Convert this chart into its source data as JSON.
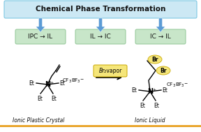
{
  "title_text": "Chemical Phase Transformation",
  "title_bg": "#cce8f4",
  "title_border": "#7ec8e3",
  "arrow_color": "#5b9bd5",
  "box_bg": "#c8e6c9",
  "box_border": "#90c695",
  "boxes": [
    "IPC → IL",
    "IL → IC",
    "IC → IL"
  ],
  "br_vapor_label_bg": "#f5e67a",
  "br_vapor_label_border": "#c8a800",
  "label_left": "Ionic Plastic Crystal",
  "label_right": "Ionic Liquid",
  "label_line_color": "#e8a020",
  "bg_color": "#ffffff",
  "br_oval_color": "#f5e67a",
  "br_oval_border": "#c8a800"
}
